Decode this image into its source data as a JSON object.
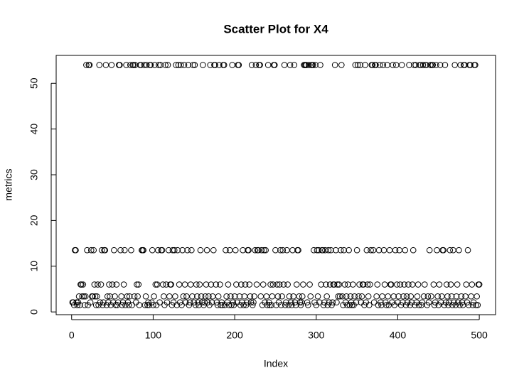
{
  "chart_data": {
    "type": "scatter",
    "title": "Scatter Plot for X4",
    "x_label": "Index",
    "y_label": "metrics",
    "xlim": [
      -18.96,
      519.96
    ],
    "ylim": [
      -0.6,
      56.1
    ],
    "xticks": [
      0,
      100,
      200,
      300,
      400,
      500
    ],
    "yticks": [
      0,
      10,
      20,
      30,
      40,
      50
    ],
    "color": "#000000",
    "values": [
      2.1,
      2.1,
      1.5,
      13.5,
      13.5,
      2.1,
      1.5,
      2.1,
      3.4,
      1.5,
      6,
      6,
      3.4,
      6,
      3.4,
      1.5,
      3.4,
      54,
      13.5,
      1.5,
      54,
      54,
      2.1,
      13.5,
      3.4,
      3.4,
      13.5,
      6,
      3.4,
      1.5,
      3.4,
      6,
      1.5,
      54,
      2.1,
      6,
      13.5,
      1.5,
      2.1,
      13.5,
      13.5,
      54,
      1.5,
      3.4,
      2.1,
      6,
      3.4,
      1.5,
      54,
      6,
      2.1,
      13.5,
      3.4,
      1.5,
      6,
      1.5,
      2.1,
      54,
      54,
      13.5,
      3.4,
      1.5,
      2.1,
      6,
      13.5,
      1.5,
      54,
      3.4,
      2.1,
      1.5,
      3.4,
      54,
      13.5,
      1.5,
      54,
      54,
      3.4,
      54,
      2.1,
      6,
      3.4,
      6,
      1.5,
      54,
      54,
      13.5,
      13.5,
      13.5,
      54,
      1.5,
      3.4,
      54,
      1.5,
      2.1,
      1.5,
      54,
      54,
      2.1,
      13.5,
      1.5,
      3.4,
      54,
      6,
      1.5,
      6,
      13.5,
      54,
      2.1,
      54,
      13.5,
      13.5,
      6,
      3.4,
      1.5,
      54,
      6,
      2.1,
      54,
      13.5,
      3.4,
      6,
      6,
      1.5,
      13.5,
      2.1,
      13.5,
      3.4,
      54,
      1.5,
      13.5,
      54,
      6,
      2.1,
      54,
      1.5,
      13.5,
      3.4,
      54,
      6,
      2.1,
      3.4,
      13.5,
      54,
      1.5,
      2.1,
      6,
      13.5,
      3.4,
      54,
      2.1,
      54,
      1.5,
      6,
      3.4,
      2.1,
      1.5,
      6,
      13.5,
      3.4,
      2.1,
      54,
      1.5,
      2.1,
      3.4,
      6,
      13.5,
      2.1,
      3.4,
      1.5,
      54,
      6,
      2.1,
      3.4,
      13.5,
      54,
      54,
      6,
      2.1,
      1.5,
      3.4,
      54,
      6,
      1.5,
      2.1,
      1.5,
      54,
      54,
      1.5,
      13.5,
      3.4,
      2.1,
      6,
      1.5,
      13.5,
      3.4,
      1.5,
      54,
      2.1,
      1.5,
      3.4,
      13.5,
      6,
      2.1,
      54,
      54,
      3.4,
      1.5,
      6,
      2.1,
      13.5,
      1.5,
      3.4,
      6,
      1.5,
      2.1,
      13.5,
      13.5,
      6,
      3.4,
      2.1,
      54,
      1.5,
      2.1,
      3.4,
      13.5,
      54,
      6,
      13.5,
      13.5,
      54,
      54,
      3.4,
      13.5,
      1.5,
      6,
      13.5,
      2.1,
      13.5,
      3.4,
      1.5,
      54,
      2.1,
      1.5,
      6,
      1.5,
      3.4,
      6,
      54,
      54,
      13.5,
      1.5,
      6,
      3.4,
      2.1,
      6,
      13.5,
      1.5,
      3.4,
      13.5,
      6,
      54,
      1.5,
      2.1,
      13.5,
      6,
      1.5,
      3.4,
      54,
      2.1,
      1.5,
      13.5,
      3.4,
      54,
      2.1,
      1.5,
      6,
      13.5,
      13.5,
      3.4,
      2.1,
      1.5,
      2.1,
      3.4,
      6,
      54,
      54,
      54,
      54,
      2.1,
      1.5,
      54,
      6,
      3.4,
      54,
      54,
      54,
      13.5,
      2.1,
      54,
      1.5,
      13.5,
      3.4,
      13.5,
      2.1,
      54,
      6,
      13.5,
      13.5,
      1.5,
      2.1,
      13.5,
      6,
      3.4,
      1.5,
      13.5,
      2.1,
      6,
      13.5,
      1.5,
      2.1,
      6,
      6,
      54,
      13.5,
      2.1,
      6,
      3.4,
      6,
      3.4,
      13.5,
      54,
      3.4,
      1.5,
      13.5,
      6,
      2.1,
      3.4,
      1.5,
      6,
      13.5,
      1.5,
      3.4,
      2.1,
      1.5,
      6,
      1.5,
      3.4,
      54,
      2.1,
      13.5,
      54,
      3.4,
      6,
      54,
      2.1,
      3.4,
      6,
      6,
      1.5,
      54,
      2.1,
      13.5,
      6,
      3.4,
      1.5,
      6,
      13.5,
      54,
      54,
      13.5,
      2.1,
      54,
      54,
      3.4,
      6,
      1.5,
      13.5,
      54,
      2.1,
      1.5,
      3.4,
      54,
      13.5,
      6,
      2.1,
      1.5,
      54,
      3.4,
      1.5,
      13.5,
      6,
      6,
      2.1,
      54,
      3.4,
      1.5,
      13.5,
      54,
      6,
      2.1,
      3.4,
      13.5,
      6,
      1.5,
      54,
      2.1,
      3.4,
      6,
      13.5,
      1.5,
      3.4,
      2.1,
      6,
      54,
      1.5,
      3.4,
      2.1,
      6,
      13.5,
      54,
      1.5,
      54,
      2.1,
      3.4,
      6,
      1.5,
      54,
      54,
      1.5,
      2.1,
      54,
      3.4,
      6,
      54,
      54,
      1.5,
      3.4,
      2.1,
      13.5,
      54,
      3.4,
      54,
      54,
      6,
      1.5,
      2.1,
      54,
      13.5,
      3.4,
      1.5,
      6,
      54,
      2.1,
      3.4,
      13.5,
      13.5,
      1.5,
      54,
      2.1,
      6,
      3.4,
      1.5,
      2.1,
      13.5,
      6,
      3.4,
      1.5,
      13.5,
      2.1,
      54,
      1.5,
      3.4,
      6,
      2.1,
      13.5,
      1.5,
      54,
      3.4,
      2.1,
      1.5,
      54,
      54,
      3.4,
      6,
      2.1,
      13.5,
      1.5,
      54,
      54,
      3.4,
      6,
      1.5,
      2.1,
      54,
      54,
      1.5,
      3.4,
      1.5,
      6,
      6
    ]
  }
}
